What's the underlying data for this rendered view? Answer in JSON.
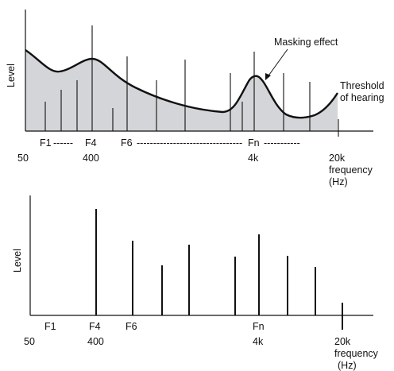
{
  "top_panel": {
    "y_axis_label": "Level",
    "band_labels": {
      "f1": "F1",
      "dash1": "------",
      "f4": "F4",
      "f6": "F6",
      "dash2": "--------------------------------",
      "fn": "Fn",
      "dash3": "-----------"
    },
    "tick_labels": {
      "t50": "50",
      "t400": "400",
      "t4k": "4k",
      "t20k": "20k"
    },
    "x_axis_label_line1": "frequency",
    "x_axis_label_line2": "(Hz)",
    "masking_label": "Masking effect",
    "threshold_label_line1": "Threshold",
    "threshold_label_line2": "of hearing",
    "colors": {
      "shade": "#d3d5d8",
      "line": "#111111"
    }
  },
  "bottom_panel": {
    "y_axis_label": "Level",
    "band_labels": {
      "f1": "F1",
      "f4": "F4",
      "f6": "F6",
      "fn": "Fn"
    },
    "tick_labels": {
      "t50": "50",
      "t400": "400",
      "t4k": "4k",
      "t20k": "20k"
    },
    "x_axis_label_line1": "frequency",
    "x_axis_label_line2": "(Hz)"
  }
}
